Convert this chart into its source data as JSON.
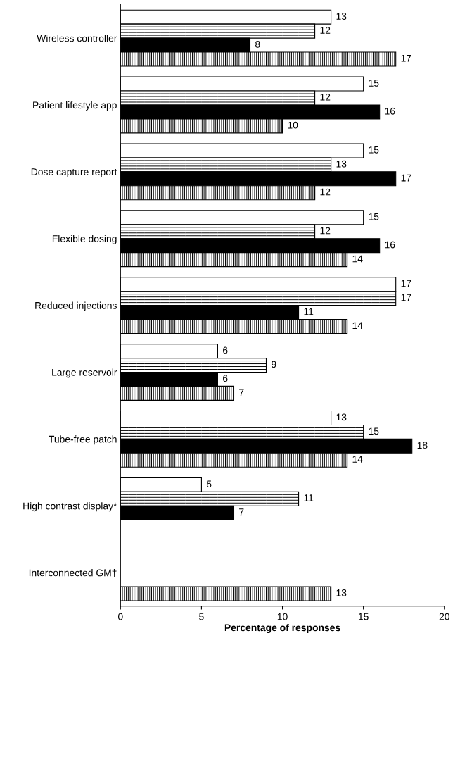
{
  "chart_data": {
    "type": "bar",
    "orientation": "horizontal",
    "xlabel": "Percentage of responses",
    "categories": [
      "Wireless controller",
      "Patient lifestyle app",
      "Dose capture report",
      "Flexible dosing",
      "Reduced injections",
      "Large reservoir",
      "Tube-free patch",
      "High contrast display*",
      "Interconnected GM†"
    ],
    "series": [
      {
        "color": "#ffffff",
        "values": [
          13,
          15,
          15,
          15,
          17,
          6,
          13,
          5,
          null
        ]
      },
      {
        "color": "#ffffff",
        "values": [
          12,
          12,
          13,
          12,
          17,
          9,
          15,
          11,
          null
        ]
      },
      {
        "color": "#000000",
        "values": [
          8,
          16,
          17,
          16,
          11,
          6,
          18,
          7,
          null
        ]
      },
      {
        "color": "#ffffff",
        "values": [
          17,
          10,
          12,
          14,
          14,
          7,
          14,
          null,
          13
        ]
      }
    ],
    "xlim": [
      0,
      20
    ],
    "xticks": [
      0,
      5,
      10,
      15,
      20
    ],
    "data_labels": true,
    "grid": false,
    "legend": false
  }
}
